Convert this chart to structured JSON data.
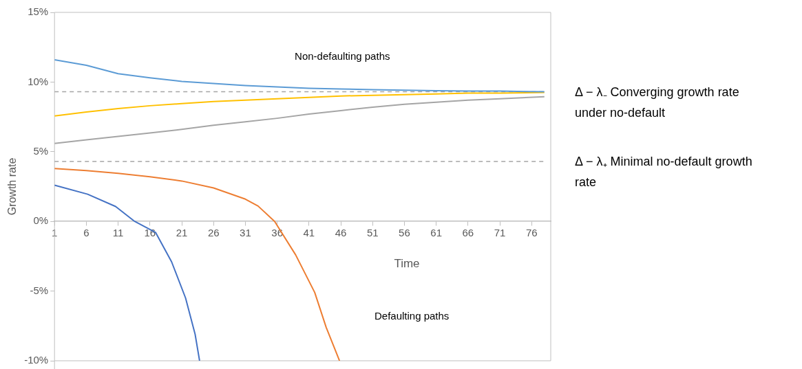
{
  "chart_data": {
    "type": "line",
    "xlabel": "Time",
    "ylabel": "Growth rate",
    "xlim": [
      1,
      79
    ],
    "xticks": [
      1,
      6,
      11,
      16,
      21,
      26,
      31,
      36,
      41,
      46,
      51,
      56,
      61,
      66,
      71,
      76
    ],
    "ylim": [
      -10,
      15
    ],
    "yticks": [
      {
        "value": -10,
        "label": "-10%"
      },
      {
        "value": -5,
        "label": "-5%"
      },
      {
        "value": 0,
        "label": "0%"
      },
      {
        "value": 5,
        "label": "5%"
      },
      {
        "value": 10,
        "label": "10%"
      },
      {
        "value": 15,
        "label": "15%"
      }
    ],
    "grid": false,
    "legend": false,
    "marker": "none",
    "line_style": "solid",
    "series": [
      {
        "color": "#5b9bd5",
        "x": [
          1,
          6,
          11,
          16,
          21,
          26,
          31,
          36,
          41,
          46,
          51,
          56,
          61,
          66,
          71,
          78
        ],
        "values": [
          11.6,
          11.2,
          10.6,
          10.3,
          10.05,
          9.9,
          9.75,
          9.65,
          9.55,
          9.5,
          9.45,
          9.42,
          9.38,
          9.36,
          9.35,
          9.3
        ]
      },
      {
        "color": "#ffc000",
        "x": [
          1,
          6,
          11,
          16,
          21,
          26,
          31,
          36,
          41,
          46,
          51,
          56,
          61,
          66,
          71,
          78
        ],
        "values": [
          7.57,
          7.85,
          8.1,
          8.3,
          8.45,
          8.6,
          8.7,
          8.8,
          8.9,
          9.0,
          9.05,
          9.1,
          9.15,
          9.2,
          9.2,
          9.25
        ]
      },
      {
        "color": "#a5a5a5",
        "x": [
          1,
          6,
          11,
          16,
          21,
          26,
          31,
          36,
          41,
          46,
          51,
          56,
          61,
          66,
          71,
          78
        ],
        "values": [
          5.6,
          5.85,
          6.1,
          6.35,
          6.6,
          6.9,
          7.15,
          7.4,
          7.7,
          7.95,
          8.2,
          8.4,
          8.55,
          8.7,
          8.8,
          8.95
        ]
      },
      {
        "color": "#ed7d31",
        "x": [
          1,
          6,
          11,
          16,
          21,
          26,
          31,
          33,
          35.6,
          38.9,
          41.9,
          43.7,
          45.8
        ],
        "values": [
          3.8,
          3.65,
          3.45,
          3.2,
          2.9,
          2.4,
          1.6,
          1.1,
          0,
          -2.4,
          -5.1,
          -7.6,
          -10
        ]
      },
      {
        "color": "#4472c4",
        "x": [
          1,
          6.2,
          10.6,
          13.6,
          16.9,
          19.4,
          21.6,
          23.1,
          23.8
        ],
        "values": [
          2.6,
          1.95,
          1.07,
          0,
          -0.8,
          -2.9,
          -5.5,
          -8.1,
          -10
        ]
      }
    ],
    "ref_lines": [
      {
        "axis": "y",
        "value": 9.3,
        "label": "Δ − λ₋  Converging growth rate under no-default",
        "color": "#a5a5a5",
        "line_style": "dashed"
      },
      {
        "axis": "y",
        "value": 4.3,
        "label": "Δ − λ₊  Minimal no-default growth rate",
        "color": "#a5a5a5",
        "line_style": "dashed"
      }
    ],
    "annotations": [
      "Non-defaulting paths",
      "Defaulting paths"
    ]
  }
}
